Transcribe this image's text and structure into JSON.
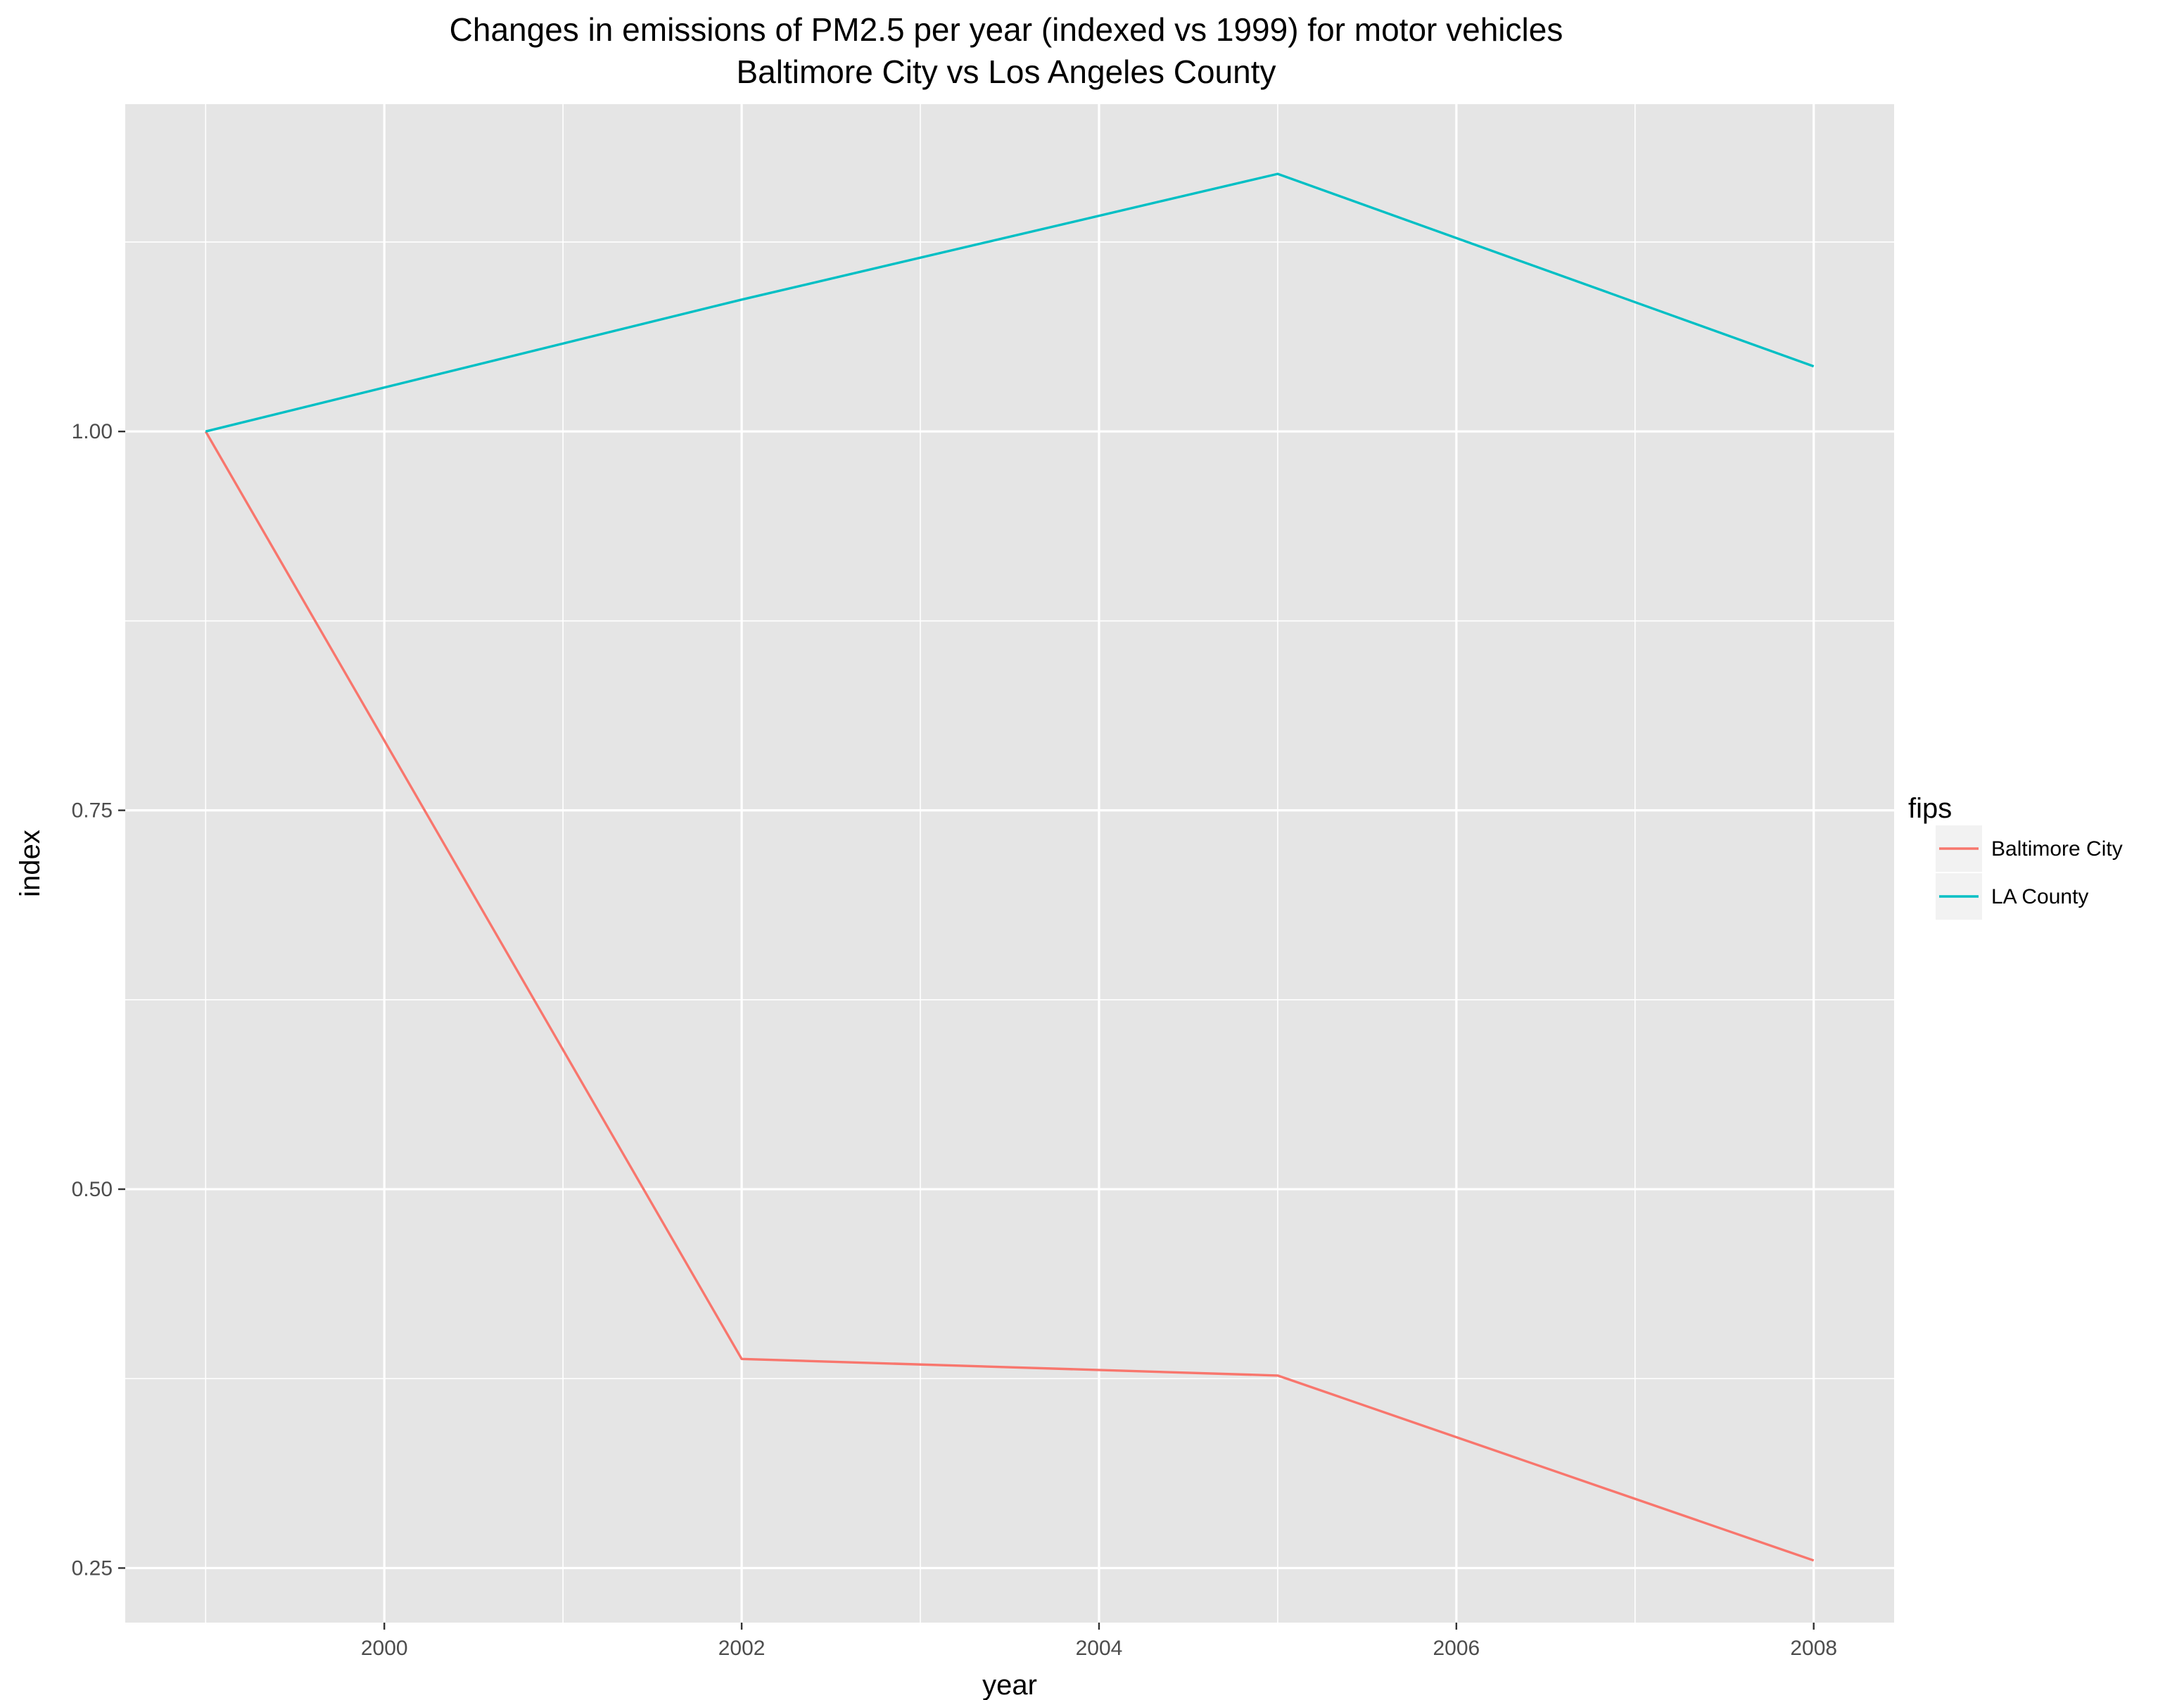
{
  "chart_data": {
    "type": "line",
    "title": "Changes in emissions of PM2.5 per year (indexed vs 1999) for motor vehicles",
    "subtitle": "Baltimore City vs Los Angeles County",
    "xlabel": "year",
    "ylabel": "index",
    "x": [
      1999,
      2002,
      2005,
      2008
    ],
    "xlim": [
      1998.55,
      2008.45
    ],
    "ylim": [
      0.214,
      1.216
    ],
    "xticks": [
      2000,
      2002,
      2004,
      2006,
      2008
    ],
    "yticks": [
      0.25,
      0.5,
      0.75,
      1.0
    ],
    "ytick_labels": [
      "0.25",
      "0.50",
      "0.75",
      "1.00"
    ],
    "xminor": [
      1999,
      2001,
      2003,
      2005,
      2007
    ],
    "yminor": [
      0.375,
      0.625,
      0.875,
      1.125
    ],
    "grid": true,
    "panel_background": "#e5e5e5",
    "grid_color": "#ffffff",
    "legend": {
      "title": "fips",
      "position": "right"
    },
    "series": [
      {
        "name": "Baltimore City",
        "color": "#f8766d",
        "values": [
          1.0,
          0.388,
          0.377,
          0.255
        ]
      },
      {
        "name": "LA County",
        "color": "#00bfc4",
        "values": [
          1.0,
          1.087,
          1.17,
          1.043
        ]
      }
    ]
  }
}
